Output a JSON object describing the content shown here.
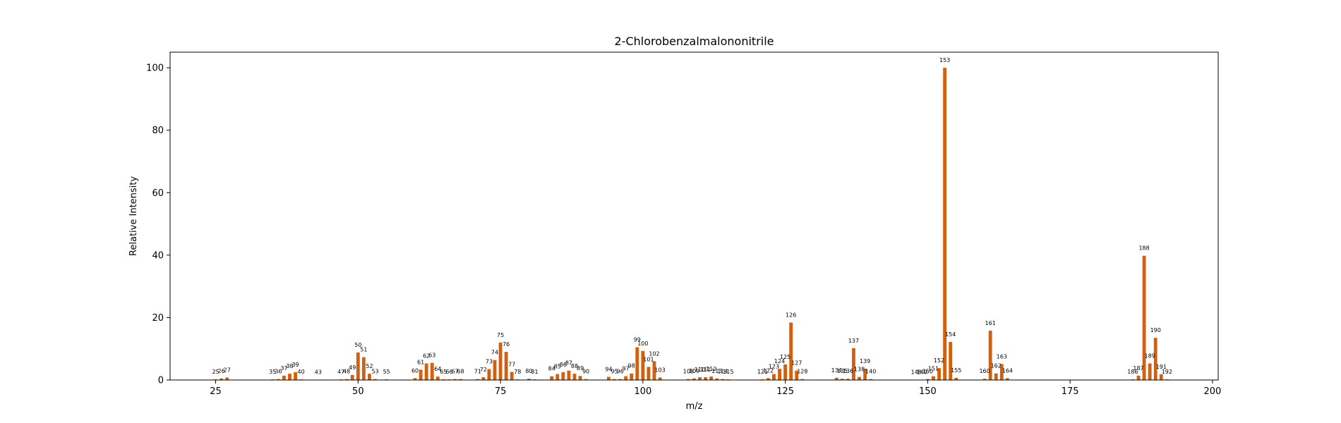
{
  "chart_data": {
    "type": "bar",
    "title": "2-Chlorobenzalmalononitrile",
    "xlabel": "m/z",
    "ylabel": "Relative Intensity",
    "xlim": [
      17,
      201
    ],
    "ylim": [
      0,
      105
    ],
    "xticks": [
      25,
      50,
      75,
      100,
      125,
      150,
      175,
      200
    ],
    "yticks": [
      0,
      20,
      40,
      60,
      80,
      100
    ],
    "bar_color": "#d2600f",
    "grid": false,
    "points": [
      {
        "mz": 25,
        "intensity": 0.2
      },
      {
        "mz": 26,
        "intensity": 0.5
      },
      {
        "mz": 27,
        "intensity": 0.8
      },
      {
        "mz": 35,
        "intensity": 0.2
      },
      {
        "mz": 36,
        "intensity": 0.3
      },
      {
        "mz": 37,
        "intensity": 1.4
      },
      {
        "mz": 38,
        "intensity": 2.0
      },
      {
        "mz": 39,
        "intensity": 2.5
      },
      {
        "mz": 40,
        "intensity": 0.2
      },
      {
        "mz": 43,
        "intensity": 0.1
      },
      {
        "mz": 47,
        "intensity": 0.2
      },
      {
        "mz": 48,
        "intensity": 0.3
      },
      {
        "mz": 49,
        "intensity": 1.6
      },
      {
        "mz": 50,
        "intensity": 8.8
      },
      {
        "mz": 51,
        "intensity": 7.3
      },
      {
        "mz": 52,
        "intensity": 2.0
      },
      {
        "mz": 53,
        "intensity": 0.3
      },
      {
        "mz": 55,
        "intensity": 0.2
      },
      {
        "mz": 60,
        "intensity": 0.6
      },
      {
        "mz": 61,
        "intensity": 3.3
      },
      {
        "mz": 62,
        "intensity": 5.3
      },
      {
        "mz": 63,
        "intensity": 5.5
      },
      {
        "mz": 64,
        "intensity": 1.1
      },
      {
        "mz": 65,
        "intensity": 0.2
      },
      {
        "mz": 66,
        "intensity": 0.2
      },
      {
        "mz": 67,
        "intensity": 0.3
      },
      {
        "mz": 68,
        "intensity": 0.3
      },
      {
        "mz": 71,
        "intensity": 0.3
      },
      {
        "mz": 72,
        "intensity": 0.9
      },
      {
        "mz": 73,
        "intensity": 3.5
      },
      {
        "mz": 74,
        "intensity": 6.4
      },
      {
        "mz": 75,
        "intensity": 12.0
      },
      {
        "mz": 76,
        "intensity": 9.0
      },
      {
        "mz": 77,
        "intensity": 2.6
      },
      {
        "mz": 78,
        "intensity": 0.2
      },
      {
        "mz": 80,
        "intensity": 0.4
      },
      {
        "mz": 81,
        "intensity": 0.2
      },
      {
        "mz": 84,
        "intensity": 1.2
      },
      {
        "mz": 85,
        "intensity": 1.9
      },
      {
        "mz": 86,
        "intensity": 2.5
      },
      {
        "mz": 87,
        "intensity": 3.0
      },
      {
        "mz": 88,
        "intensity": 2.0
      },
      {
        "mz": 89,
        "intensity": 1.3
      },
      {
        "mz": 90,
        "intensity": 0.3
      },
      {
        "mz": 94,
        "intensity": 1.0
      },
      {
        "mz": 95,
        "intensity": 0.3
      },
      {
        "mz": 96,
        "intensity": 0.3
      },
      {
        "mz": 97,
        "intensity": 1.2
      },
      {
        "mz": 98,
        "intensity": 2.1
      },
      {
        "mz": 99,
        "intensity": 10.5
      },
      {
        "mz": 100,
        "intensity": 9.3
      },
      {
        "mz": 101,
        "intensity": 4.2
      },
      {
        "mz": 102,
        "intensity": 6.0
      },
      {
        "mz": 103,
        "intensity": 0.8
      },
      {
        "mz": 108,
        "intensity": 0.3
      },
      {
        "mz": 109,
        "intensity": 0.5
      },
      {
        "mz": 110,
        "intensity": 0.9
      },
      {
        "mz": 111,
        "intensity": 0.9
      },
      {
        "mz": 112,
        "intensity": 1.1
      },
      {
        "mz": 113,
        "intensity": 0.5
      },
      {
        "mz": 114,
        "intensity": 0.3
      },
      {
        "mz": 115,
        "intensity": 0.2
      },
      {
        "mz": 121,
        "intensity": 0.2
      },
      {
        "mz": 122,
        "intensity": 0.6
      },
      {
        "mz": 123,
        "intensity": 1.9
      },
      {
        "mz": 124,
        "intensity": 3.6
      },
      {
        "mz": 125,
        "intensity": 5.0
      },
      {
        "mz": 126,
        "intensity": 18.4
      },
      {
        "mz": 127,
        "intensity": 3.0
      },
      {
        "mz": 128,
        "intensity": 0.3
      },
      {
        "mz": 134,
        "intensity": 0.7
      },
      {
        "mz": 135,
        "intensity": 0.4
      },
      {
        "mz": 136,
        "intensity": 0.4
      },
      {
        "mz": 137,
        "intensity": 10.2
      },
      {
        "mz": 138,
        "intensity": 1.0
      },
      {
        "mz": 139,
        "intensity": 3.6
      },
      {
        "mz": 140,
        "intensity": 0.3
      },
      {
        "mz": 148,
        "intensity": 0.1
      },
      {
        "mz": 149,
        "intensity": 0.1
      },
      {
        "mz": 150,
        "intensity": 0.3
      },
      {
        "mz": 151,
        "intensity": 1.2
      },
      {
        "mz": 152,
        "intensity": 3.8
      },
      {
        "mz": 153,
        "intensity": 100.0
      },
      {
        "mz": 154,
        "intensity": 12.2
      },
      {
        "mz": 155,
        "intensity": 0.7
      },
      {
        "mz": 160,
        "intensity": 0.4
      },
      {
        "mz": 161,
        "intensity": 15.8
      },
      {
        "mz": 162,
        "intensity": 2.1
      },
      {
        "mz": 163,
        "intensity": 5.1
      },
      {
        "mz": 164,
        "intensity": 0.6
      },
      {
        "mz": 186,
        "intensity": 0.2
      },
      {
        "mz": 187,
        "intensity": 1.4
      },
      {
        "mz": 188,
        "intensity": 39.8
      },
      {
        "mz": 189,
        "intensity": 5.3
      },
      {
        "mz": 190,
        "intensity": 13.5
      },
      {
        "mz": 191,
        "intensity": 1.8
      },
      {
        "mz": 192,
        "intensity": 0.2
      }
    ]
  }
}
